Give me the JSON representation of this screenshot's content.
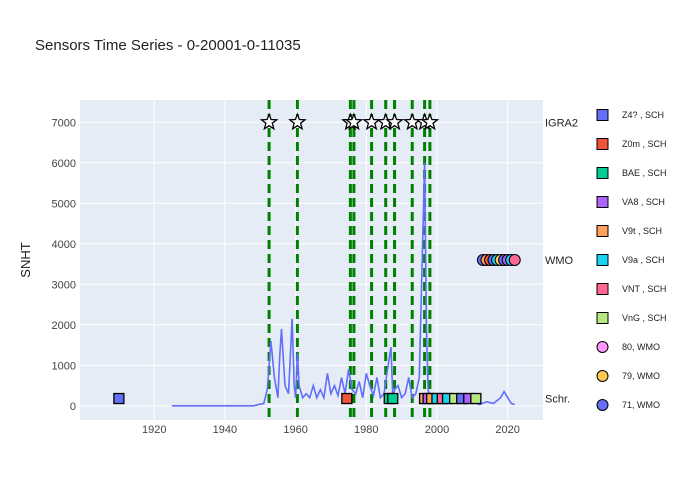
{
  "chart_data": {
    "type": "line",
    "title": "Sensors Time Series - 0-20001-0-11035",
    "ylabel": "SNHT",
    "xlim": [
      1899,
      2030
    ],
    "ylim": [
      -350,
      7550
    ],
    "x_ticks": [
      1920,
      1940,
      1960,
      1980,
      2000,
      2020
    ],
    "y_ticks": [
      0,
      1000,
      2000,
      3000,
      4000,
      5000,
      6000,
      7000
    ],
    "grid": true,
    "legend_position": "right",
    "side_labels": [
      {
        "text": "IGRA2",
        "y": 7000
      },
      {
        "text": "WMO",
        "y": 3600
      },
      {
        "text": "Schr.",
        "y": 180
      }
    ],
    "snht_line": {
      "color": "#636efa",
      "x": [
        1925,
        1930,
        1940,
        1948,
        1951,
        1952,
        1953,
        1954,
        1955,
        1955.5,
        1956,
        1957,
        1958,
        1958.5,
        1959,
        1959.6,
        1960,
        1960.5,
        1961,
        1962,
        1963,
        1964,
        1965,
        1966,
        1967,
        1968,
        1969,
        1970,
        1971,
        1972,
        1973,
        1974,
        1975,
        1976,
        1977,
        1978,
        1979,
        1980,
        1981,
        1982,
        1983,
        1984,
        1985,
        1986,
        1987,
        1987.5,
        1988,
        1989,
        1990,
        1991,
        1992,
        1993,
        1994,
        1995,
        1996,
        1996.5,
        1997,
        1997.5,
        1998,
        1999,
        2000,
        2001,
        2002,
        2004,
        2006,
        2008,
        2010,
        2012,
        2014,
        2016,
        2018,
        2019,
        2020,
        2021,
        2022
      ],
      "y": [
        0,
        0,
        0,
        0,
        60,
        400,
        1600,
        700,
        200,
        1200,
        1900,
        500,
        300,
        1200,
        2150,
        500,
        200,
        1300,
        500,
        200,
        300,
        200,
        500,
        200,
        400,
        200,
        800,
        300,
        500,
        250,
        700,
        300,
        900,
        400,
        300,
        600,
        200,
        800,
        500,
        250,
        700,
        200,
        300,
        900,
        1450,
        200,
        400,
        500,
        200,
        300,
        700,
        200,
        300,
        700,
        4200,
        6000,
        2000,
        400,
        200,
        100,
        150,
        100,
        50,
        100,
        100,
        50,
        100,
        30,
        100,
        60,
        200,
        350,
        200,
        60,
        30
      ]
    },
    "vertical_dashed_lines": {
      "color": "#008000",
      "x": [
        1952.5,
        1960.5,
        1975.5,
        1976.5,
        1981.5,
        1985.5,
        1988,
        1993,
        1996.5,
        1998
      ]
    },
    "igra2_stars": {
      "y": 7000,
      "x": [
        1952.5,
        1960.5,
        1975.5,
        1976.5,
        1981.5,
        1985.5,
        1988,
        1993,
        1996.5,
        1998
      ]
    },
    "wmo_circles": {
      "y": 3600,
      "points": [
        {
          "x": 2013,
          "color": "#636efa"
        },
        {
          "x": 2014,
          "color": "#ffa15a"
        },
        {
          "x": 2015,
          "color": "#ef553b"
        },
        {
          "x": 2016,
          "color": "#636efa"
        },
        {
          "x": 2017,
          "color": "#19d3f3"
        },
        {
          "x": 2018,
          "color": "#fecb52"
        },
        {
          "x": 2019,
          "color": "#636efa"
        },
        {
          "x": 2020,
          "color": "#ab63fa"
        },
        {
          "x": 2021,
          "color": "#19d3f3"
        },
        {
          "x": 2022,
          "color": "#ff6692"
        }
      ]
    },
    "schroeder_squares": {
      "y": 180,
      "points": [
        {
          "x": 1910,
          "color": "#636efa"
        },
        {
          "x": 1974.5,
          "color": "#ef553b"
        },
        {
          "x": 1986.5,
          "color": "#00cc96"
        },
        {
          "x": 1987.5,
          "color": "#00cc96"
        },
        {
          "x": 1996.5,
          "color": "#ffa15a"
        },
        {
          "x": 1997.5,
          "color": "#ab63fa"
        },
        {
          "x": 1998.5,
          "color": "#ffa15a"
        },
        {
          "x": 2000,
          "color": "#19d3f3"
        },
        {
          "x": 2001.5,
          "color": "#ff6692"
        },
        {
          "x": 2003,
          "color": "#19d3f3"
        },
        {
          "x": 2005,
          "color": "#b6e880"
        },
        {
          "x": 2007,
          "color": "#636efa"
        },
        {
          "x": 2009,
          "color": "#ab63fa"
        },
        {
          "x": 2011,
          "color": "#b6e880"
        }
      ]
    },
    "legend": [
      {
        "label": "Z4? , SCH",
        "symbol": "square",
        "color": "#636efa"
      },
      {
        "label": "Z0m , SCH",
        "symbol": "square",
        "color": "#ef553b"
      },
      {
        "label": "BAE , SCH",
        "symbol": "square",
        "color": "#00cc96"
      },
      {
        "label": "VA8 , SCH",
        "symbol": "square",
        "color": "#ab63fa"
      },
      {
        "label": "V9t , SCH",
        "symbol": "square",
        "color": "#ffa15a"
      },
      {
        "label": "V9a , SCH",
        "symbol": "square",
        "color": "#19d3f3"
      },
      {
        "label": "VNT , SCH",
        "symbol": "square",
        "color": "#ff6692"
      },
      {
        "label": "VnG , SCH",
        "symbol": "square",
        "color": "#b6e880"
      },
      {
        "label": "80, WMO",
        "symbol": "circle",
        "color": "#ff97ff"
      },
      {
        "label": "79, WMO",
        "symbol": "circle",
        "color": "#fecb52"
      },
      {
        "label": "71, WMO",
        "symbol": "circle",
        "color": "#636efa"
      }
    ]
  }
}
